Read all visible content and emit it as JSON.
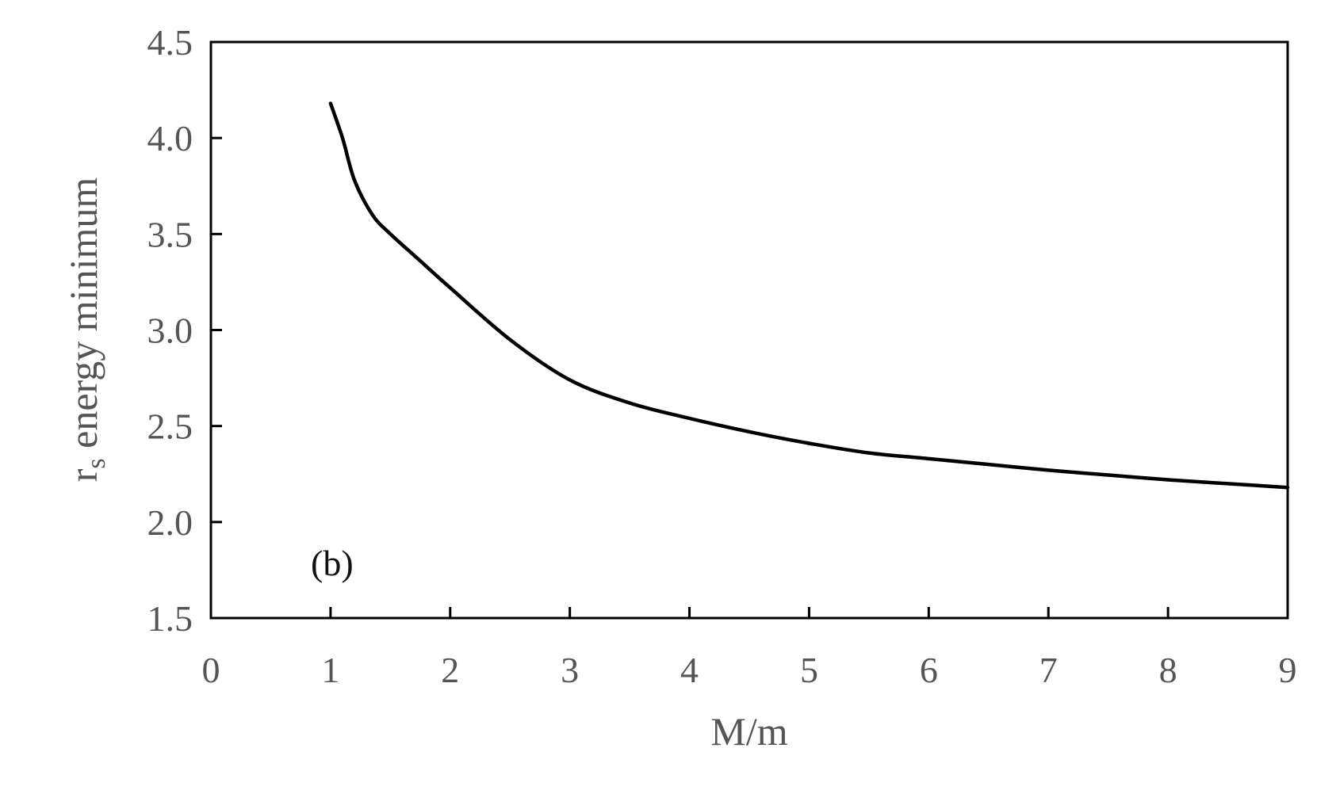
{
  "chart_data": {
    "type": "line",
    "title": "",
    "xlabel": "M/m",
    "ylabel": {
      "main": "r",
      "subscript": "s",
      "rest": " energy minimum"
    },
    "annotation": "(b)",
    "xlim": [
      0,
      9
    ],
    "ylim": [
      1.5,
      4.5
    ],
    "xticks": [
      "0",
      "1",
      "2",
      "3",
      "4",
      "5",
      "6",
      "7",
      "8",
      "9"
    ],
    "yticks": [
      "1.5",
      "2.0",
      "2.5",
      "3.0",
      "3.5",
      "4.0",
      "4.5"
    ],
    "grid": false,
    "legend": "none",
    "line_color": "#000000",
    "series": [
      {
        "x": [
          1.0,
          1.1,
          1.2,
          1.35,
          1.5,
          1.75,
          2.0,
          2.5,
          3.0,
          3.5,
          4.0,
          4.5,
          5.0,
          5.5,
          6.0,
          6.5,
          7.0,
          7.5,
          8.0,
          8.5,
          9.0
        ],
        "values": [
          4.18,
          4.0,
          3.78,
          3.6,
          3.5,
          3.36,
          3.22,
          2.95,
          2.74,
          2.62,
          2.54,
          2.47,
          2.41,
          2.36,
          2.33,
          2.3,
          2.27,
          2.245,
          2.22,
          2.2,
          2.18
        ]
      }
    ]
  }
}
